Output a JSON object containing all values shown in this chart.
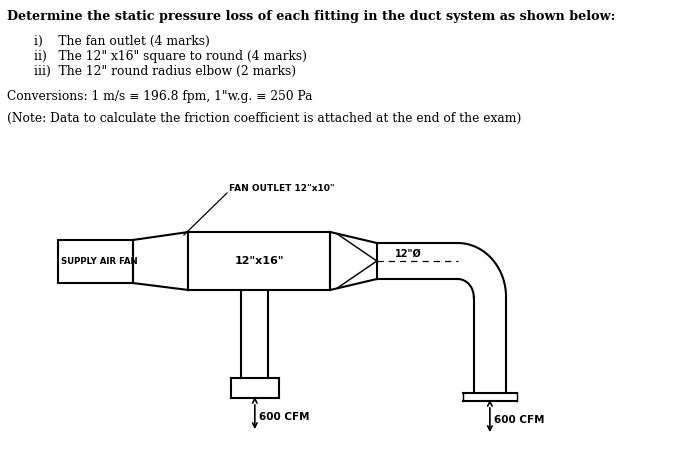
{
  "title_line": "Determine the static pressure loss of each fitting in the duct system as shown below:",
  "item1": "i)    The fan outlet (4 marks)",
  "item2": "ii)   The 12\" x16\" square to round (4 marks)",
  "item3": "iii)  The 12\" round radius elbow (2 marks)",
  "conversions": "Conversions: 1 m/s ≡ 196.8 fpm, 1\"w.g. ≡ 250 Pa",
  "note": "(Note: Data to calculate the friction coefficient is attached at the end of the exam)",
  "fan_outlet_label": "FAN OUTLET 12\"x10\"",
  "supply_air_fan_label": "SUPPLY AIR FAN",
  "duct_label_1": "12\"x16\"",
  "duct_label_2": "12\"Ø",
  "cfm_label_1": "600 CFM",
  "cfm_label_2": "600 CFM",
  "bg_color": "#ffffff",
  "text_color": "#000000",
  "line_color": "#000000"
}
